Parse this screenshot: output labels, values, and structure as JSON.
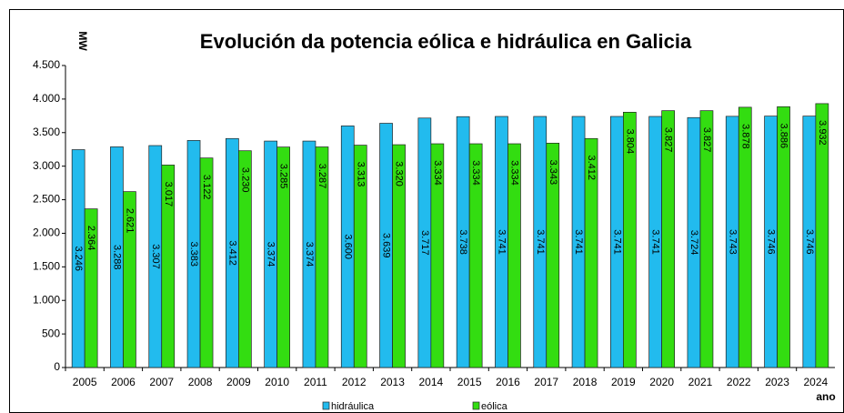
{
  "chart_data": {
    "type": "bar",
    "title": "Evolución da potencia eólica e hidráulica en Galicia",
    "y_label": "MW",
    "x_label": "ano",
    "categories": [
      "2005",
      "2006",
      "2007",
      "2008",
      "2009",
      "2010",
      "2011",
      "2012",
      "2013",
      "2014",
      "2015",
      "2016",
      "2017",
      "2018",
      "2019",
      "2020",
      "2021",
      "2022",
      "2023",
      "2024"
    ],
    "series": [
      {
        "name": "hidráulica",
        "color": "#22bbee",
        "values": [
          3246,
          3288,
          3307,
          3383,
          3412,
          3374,
          3374,
          3600,
          3639,
          3717,
          3738,
          3741,
          3741,
          3741,
          3741,
          3741,
          3724,
          3743,
          3746,
          3746
        ],
        "value_labels": [
          "3.246",
          "3.288",
          "3.307",
          "3.383",
          "3.412",
          "3.374",
          "3.374",
          "3.600",
          "3.639",
          "3.717",
          "3.738",
          "3.741",
          "3.741",
          "3.741",
          "3.741",
          "3.741",
          "3.724",
          "3.743",
          "3.746",
          "3.746"
        ]
      },
      {
        "name": "eólica",
        "color": "#33dd11",
        "values": [
          2364,
          2621,
          3017,
          3122,
          3230,
          3285,
          3287,
          3313,
          3320,
          3334,
          3334,
          3334,
          3343,
          3412,
          3804,
          3827,
          3827,
          3878,
          3886,
          3932
        ],
        "value_labels": [
          "2.364",
          "2.621",
          "3.017",
          "3.122",
          "3.230",
          "3.285",
          "3.287",
          "3.313",
          "3.320",
          "3.334",
          "3.334",
          "3.334",
          "3.343",
          "3.412",
          "3.804",
          "3.827",
          "3.827",
          "3.878",
          "3.886",
          "3.932"
        ]
      }
    ],
    "ylim": [
      0,
      4500
    ],
    "yticks": [
      0,
      500,
      {
        "value": 1000,
        "label": "1.000"
      },
      {
        "value": 1500,
        "label": "1.500"
      },
      {
        "value": 2000,
        "label": "2.000"
      },
      {
        "value": 2500,
        "label": "2.500"
      },
      {
        "value": 3000,
        "label": "3.000"
      },
      {
        "value": 3500,
        "label": "3.500"
      },
      {
        "value": 4000,
        "label": "4.000"
      },
      {
        "value": 4500,
        "label": "4.500"
      }
    ],
    "legend": "bottom"
  }
}
